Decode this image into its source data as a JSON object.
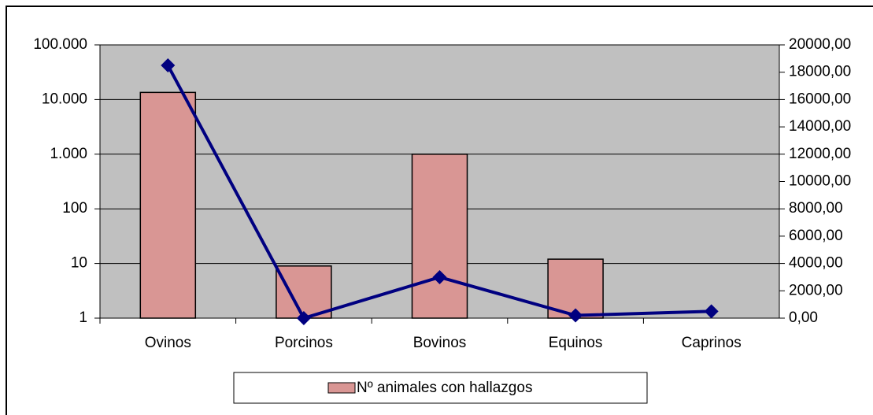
{
  "chart_data": {
    "type": "bar",
    "categories": [
      "Ovinos",
      "Porcinos",
      "Bovinos",
      "Equinos",
      "Caprinos"
    ],
    "yscale": "log",
    "ylim": [
      1,
      100000
    ],
    "yticks": [
      1,
      10,
      100,
      {
        "value": 1000,
        "label": "1.000"
      },
      {
        "value": 10000,
        "label": "10.000"
      },
      {
        "value": 100000,
        "label": "100.000"
      }
    ],
    "y2lim": [
      0,
      20000
    ],
    "y2ticks": [
      {
        "value": 0,
        "label": "0,00"
      },
      {
        "value": 2000,
        "label": "2000,00"
      },
      {
        "value": 4000,
        "label": "4000,00"
      },
      {
        "value": 6000,
        "label": "6000,00"
      },
      {
        "value": 8000,
        "label": "8000,00"
      },
      {
        "value": 10000,
        "label": "10000,00"
      },
      {
        "value": 12000,
        "label": "12000,00"
      },
      {
        "value": 14000,
        "label": "14000,00"
      },
      {
        "value": 16000,
        "label": "16000,00"
      },
      {
        "value": 18000,
        "label": "18000,00"
      },
      {
        "value": 20000,
        "label": "20000,00"
      }
    ],
    "grid": true,
    "legend": "bottom",
    "series": [
      {
        "name": "Nº animales con hallazgos",
        "type": "bar",
        "color": "#d99694",
        "values": [
          13500,
          9,
          1000,
          12,
          null
        ]
      },
      {
        "type": "line",
        "axis": "y2",
        "color": "#000080",
        "values": [
          18500,
          0,
          3000,
          200,
          500
        ]
      }
    ]
  }
}
